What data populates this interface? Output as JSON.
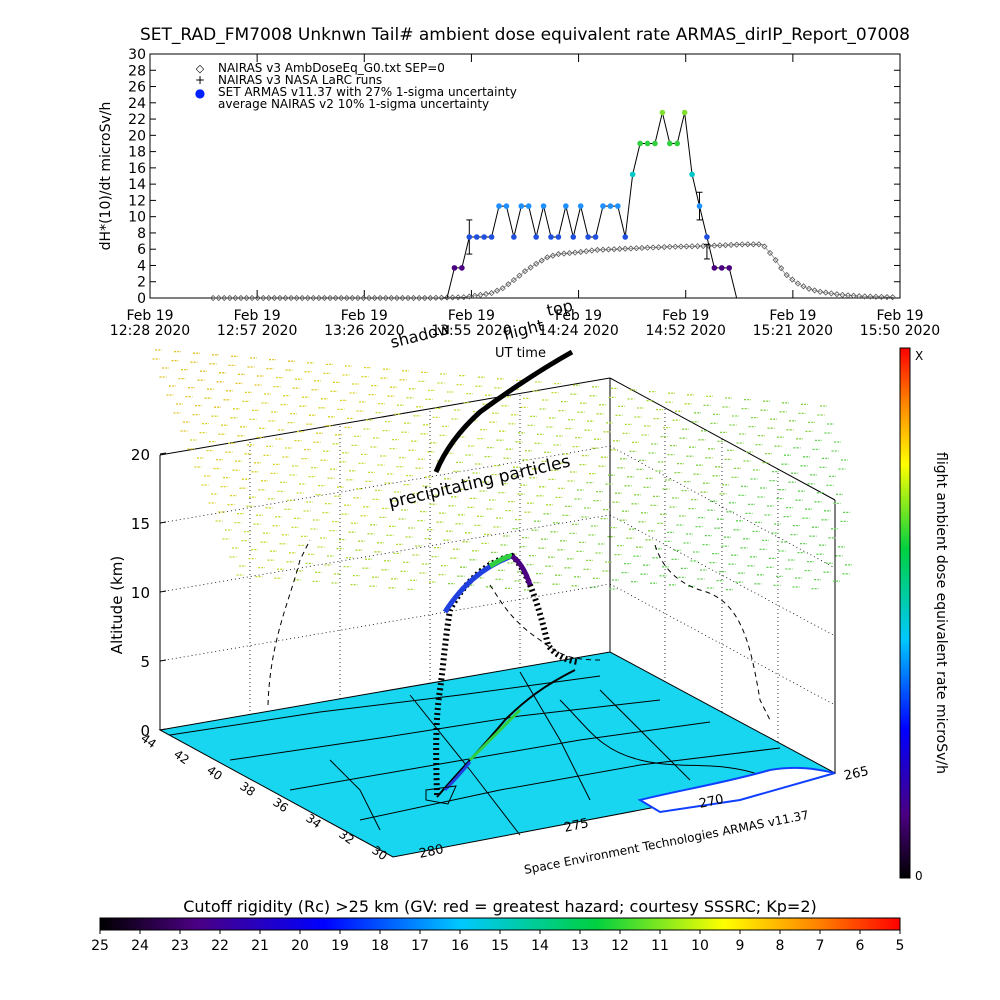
{
  "header": {
    "title": "SET_RAD_FM7008   Unknwn Tail#   ambient dose equivalent rate ARMAS_dirIP_Report_07008"
  },
  "chart_data": [
    {
      "type": "line",
      "ylabel": "dH*(10)/dt microSv/h",
      "ylim": [
        0,
        30
      ],
      "y_ticks": [
        "0",
        "2",
        "4",
        "6",
        "8",
        "10",
        "12",
        "14",
        "16",
        "18",
        "20",
        "22",
        "24",
        "26",
        "28",
        "30"
      ],
      "x_tick_labels": [
        {
          "date": "Feb 19",
          "time": "12:28 2020"
        },
        {
          "date": "Feb 19",
          "time": "12:57 2020"
        },
        {
          "date": "Feb 19",
          "time": "13:26 2020"
        },
        {
          "date": "Feb 19",
          "time": "13:55 2020"
        },
        {
          "date": "Feb 19",
          "time": "14:24 2020"
        },
        {
          "date": "Feb 19",
          "time": "14:52 2020"
        },
        {
          "date": "Feb 19",
          "time": "15:21 2020"
        },
        {
          "date": "Feb 19",
          "time": "15:50 2020"
        }
      ],
      "xlim_minutes_after_1228": [
        0,
        202
      ],
      "legend": [
        {
          "symbol": "◇",
          "label": "NAIRAS v3 AmbDoseEq_G0.txt SEP=0"
        },
        {
          "symbol": "+",
          "label": "NAIRAS v3 NASA LaRC runs"
        },
        {
          "symbol": "●",
          "label": "SET ARMAS v11.37 with 27% 1-sigma uncertainty"
        },
        {
          "symbol": "",
          "label": "average NAIRAS v2 10% 1-sigma uncertainty"
        }
      ],
      "series": [
        {
          "name": "NAIRAS v3 AmbDoseEq_G0.txt SEP=0",
          "x_minutes": [
            17,
            30,
            45,
            60,
            75,
            85,
            92,
            95,
            98,
            101,
            104,
            107,
            110,
            115,
            120,
            130,
            140,
            150,
            160,
            165,
            168,
            171,
            174,
            177,
            180,
            186,
            192,
            200
          ],
          "y": [
            0,
            0,
            0,
            0,
            0,
            0.1,
            0.6,
            1.2,
            2.2,
            3.3,
            4.2,
            5.0,
            5.4,
            5.6,
            5.9,
            6.1,
            6.3,
            6.4,
            6.6,
            6.6,
            5.0,
            3.0,
            1.9,
            1.2,
            0.8,
            0.4,
            0.2,
            0.1
          ]
        },
        {
          "name": "SET ARMAS v11.37",
          "points": [
            {
              "t": 0,
              "v": 3.7,
              "c": "#4b0082"
            },
            {
              "t": 2,
              "v": 3.7,
              "c": "#4b0082"
            },
            {
              "t": 4,
              "v": 7.5,
              "c": "#2050e0"
            },
            {
              "t": 6,
              "v": 7.5,
              "c": "#2050e0"
            },
            {
              "t": 8,
              "v": 7.5,
              "c": "#2050e0"
            },
            {
              "t": 10,
              "v": 7.5,
              "c": "#2050e0"
            },
            {
              "t": 12,
              "v": 11.3,
              "c": "#1e90ff"
            },
            {
              "t": 14,
              "v": 11.3,
              "c": "#1e90ff"
            },
            {
              "t": 16,
              "v": 7.5,
              "c": "#2050e0"
            },
            {
              "t": 18,
              "v": 11.3,
              "c": "#1e90ff"
            },
            {
              "t": 20,
              "v": 11.3,
              "c": "#1e90ff"
            },
            {
              "t": 22,
              "v": 7.5,
              "c": "#2050e0"
            },
            {
              "t": 24,
              "v": 11.3,
              "c": "#1e90ff"
            },
            {
              "t": 26,
              "v": 7.5,
              "c": "#2050e0"
            },
            {
              "t": 28,
              "v": 7.5,
              "c": "#2050e0"
            },
            {
              "t": 30,
              "v": 11.3,
              "c": "#1e90ff"
            },
            {
              "t": 32,
              "v": 7.5,
              "c": "#2050e0"
            },
            {
              "t": 34,
              "v": 11.3,
              "c": "#1e90ff"
            },
            {
              "t": 36,
              "v": 7.5,
              "c": "#2050e0"
            },
            {
              "t": 38,
              "v": 7.5,
              "c": "#2050e0"
            },
            {
              "t": 40,
              "v": 11.3,
              "c": "#1e90ff"
            },
            {
              "t": 42,
              "v": 11.3,
              "c": "#1e90ff"
            },
            {
              "t": 44,
              "v": 11.3,
              "c": "#1e90ff"
            },
            {
              "t": 46,
              "v": 7.5,
              "c": "#2050e0"
            },
            {
              "t": 48,
              "v": 15.2,
              "c": "#00c8c8"
            },
            {
              "t": 50,
              "v": 19.0,
              "c": "#30d040"
            },
            {
              "t": 52,
              "v": 19.0,
              "c": "#30d040"
            },
            {
              "t": 54,
              "v": 19.0,
              "c": "#30d040"
            },
            {
              "t": 56,
              "v": 22.8,
              "c": "#80e030"
            },
            {
              "t": 58,
              "v": 19.0,
              "c": "#30d040"
            },
            {
              "t": 60,
              "v": 19.0,
              "c": "#30d040"
            },
            {
              "t": 62,
              "v": 22.8,
              "c": "#80e030"
            },
            {
              "t": 64,
              "v": 15.2,
              "c": "#00c8c8"
            },
            {
              "t": 66,
              "v": 11.3,
              "c": "#1e90ff"
            },
            {
              "t": 68,
              "v": 7.5,
              "c": "#2050e0"
            },
            {
              "t": 70,
              "v": 3.7,
              "c": "#4b0082"
            },
            {
              "t": 72,
              "v": 3.7,
              "c": "#4b0082"
            },
            {
              "t": 74,
              "v": 3.7,
              "c": "#4b0082"
            }
          ]
        }
      ]
    },
    {
      "type": "scatter",
      "zlabel": "Altitude (km)",
      "z_ticks": [
        "0",
        "5",
        "10",
        "15",
        "20"
      ],
      "lat_ticks": [
        "44",
        "42",
        "40",
        "38",
        "36",
        "34",
        "32",
        "30"
      ],
      "lon_ticks": [
        "280",
        "275",
        "270",
        "265"
      ],
      "annotations": [
        "shadow",
        "UT time",
        "top",
        "flight",
        "precipitating particles",
        "Space Environment Technologies ARMAS v11.37"
      ]
    },
    {
      "type": "colorbar",
      "label": "flight ambient dose equivalent rate microSv/h",
      "top_label": "X",
      "bottom_label": "0"
    },
    {
      "type": "colorbar",
      "title": "Cutoff rigidity (Rc) >25 km (GV: red = greatest hazard; courtesy SSSRC; Kp=2)",
      "tick_labels": [
        "25",
        "24",
        "23",
        "22",
        "21",
        "20",
        "19",
        "18",
        "17",
        "16",
        "15",
        "14",
        "13",
        "12",
        "11",
        "10",
        "9",
        "8",
        "7",
        "6",
        "5"
      ]
    }
  ]
}
